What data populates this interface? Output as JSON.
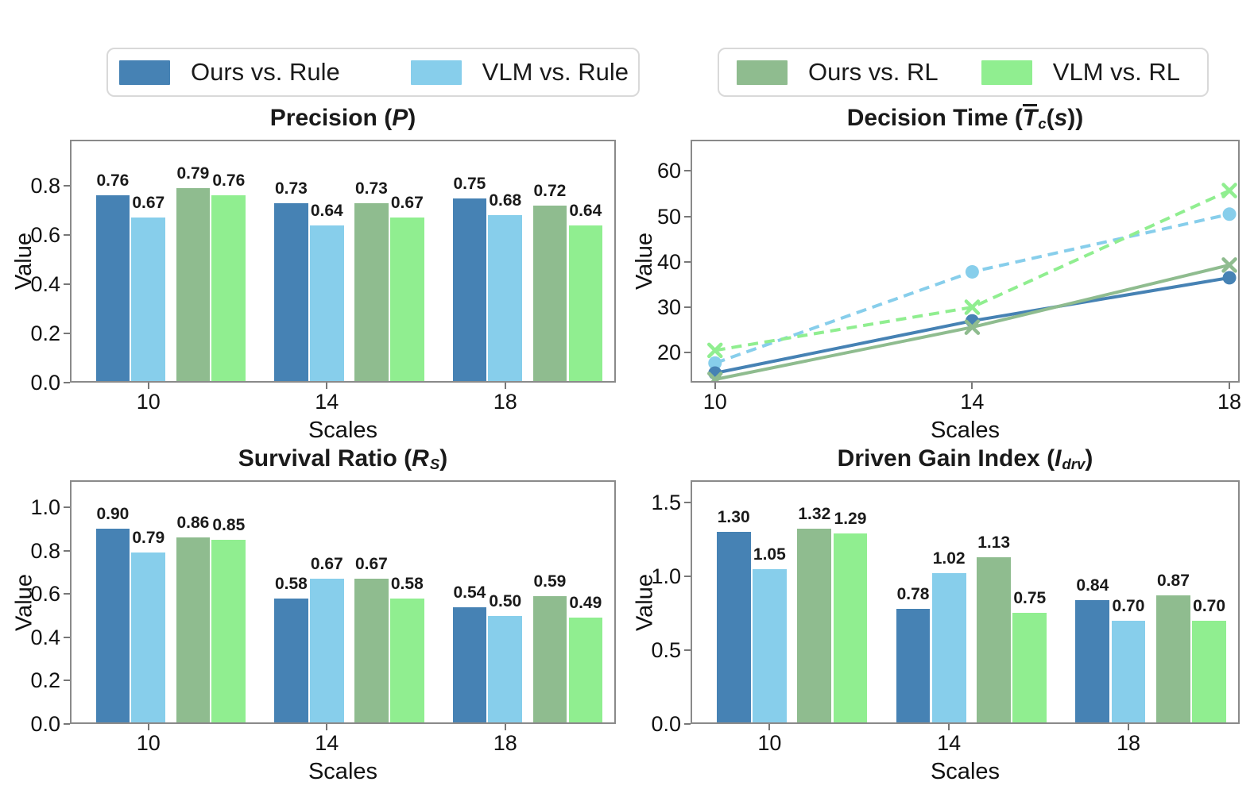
{
  "legends": [
    {
      "items": [
        {
          "label": "Ours vs. Rule",
          "color": "#4682b4"
        },
        {
          "label": "VLM vs. Rule",
          "color": "#87ceeb"
        }
      ]
    },
    {
      "items": [
        {
          "label": "Ours vs. RL",
          "color": "#8fbc8f"
        },
        {
          "label": "VLM vs. RL",
          "color": "#90ee90"
        }
      ]
    }
  ],
  "chart_data": [
    {
      "id": "precision",
      "type": "bar",
      "title": "Precision (P)",
      "title_segments": [
        {
          "t": "Precision ("
        },
        {
          "t": "P",
          "italic": true
        },
        {
          "t": ")"
        }
      ],
      "xlabel": "Scales",
      "ylabel": "Value",
      "categories": [
        "10",
        "14",
        "18"
      ],
      "series": [
        {
          "name": "Ours vs. Rule",
          "color": "#4682b4",
          "values": [
            0.76,
            0.73,
            0.75
          ],
          "labels": [
            "0.76",
            "0.73",
            "0.75"
          ]
        },
        {
          "name": "VLM vs. Rule",
          "color": "#87ceeb",
          "values": [
            0.67,
            0.64,
            0.68
          ],
          "labels": [
            "0.67",
            "0.64",
            "0.68"
          ]
        },
        {
          "name": "Ours vs. RL",
          "color": "#8fbc8f",
          "values": [
            0.79,
            0.73,
            0.72
          ],
          "labels": [
            "0.79",
            "0.73",
            "0.72"
          ]
        },
        {
          "name": "VLM vs. RL",
          "color": "#90ee90",
          "values": [
            0.76,
            0.67,
            0.64
          ],
          "labels": [
            "0.76",
            "0.67",
            "0.64"
          ]
        }
      ],
      "ytick_values": [
        0,
        0.2,
        0.4,
        0.6,
        0.8
      ],
      "ytick_labels": [
        "0.0",
        "0.2",
        "0.4",
        "0.6",
        "0.8"
      ],
      "ylim": [
        0,
        0.9875
      ],
      "grid": false
    },
    {
      "id": "decision-time",
      "type": "line",
      "title": "Decision Time (T̄c(s))",
      "title_segments": [
        {
          "t": "Decision Time ("
        },
        {
          "t": "T",
          "italic": true,
          "overline": true
        },
        {
          "t": "c",
          "italic": true,
          "sub": true
        },
        {
          "t": "("
        },
        {
          "t": "s",
          "italic": true
        },
        {
          "t": "))"
        }
      ],
      "xlabel": "Scales",
      "ylabel": "Value",
      "x": [
        10,
        14,
        18
      ],
      "xtick_labels": [
        "10",
        "14",
        "18"
      ],
      "xlim": [
        9.62,
        18.16
      ],
      "series": [
        {
          "name": "VLM vs. Rule",
          "color": "#87ceeb",
          "style": "dashed",
          "marker": "circle",
          "values": [
            17.7,
            37.8,
            50.5
          ]
        },
        {
          "name": "Ours vs. Rule",
          "color": "#4682b4",
          "style": "solid",
          "marker": "circle",
          "values": [
            15.5,
            27.0,
            36.5
          ]
        },
        {
          "name": "VLM vs. RL",
          "color": "#90ee90",
          "style": "dashed",
          "marker": "x",
          "values": [
            20.5,
            30.0,
            55.7
          ]
        },
        {
          "name": "Ours vs. RL",
          "color": "#8fbc8f",
          "style": "solid",
          "marker": "x",
          "values": [
            14.1,
            25.6,
            39.3
          ]
        }
      ],
      "ytick_values": [
        20,
        30,
        40,
        50,
        60
      ],
      "ytick_labels": [
        "20",
        "30",
        "40",
        "50",
        "60"
      ],
      "ylim": [
        13.4,
        66.9
      ],
      "grid": false
    },
    {
      "id": "survival-ratio",
      "type": "bar",
      "title": "Survival Ratio (RS)",
      "title_segments": [
        {
          "t": "Survival Ratio ("
        },
        {
          "t": "R",
          "italic": true
        },
        {
          "t": "S",
          "italic": true,
          "sub": true
        },
        {
          "t": ")"
        }
      ],
      "xlabel": "Scales",
      "ylabel": "Value",
      "categories": [
        "10",
        "14",
        "18"
      ],
      "series": [
        {
          "name": "Ours vs. Rule",
          "color": "#4682b4",
          "values": [
            0.9,
            0.58,
            0.54
          ],
          "labels": [
            "0.90",
            "0.58",
            "0.54"
          ]
        },
        {
          "name": "VLM vs. Rule",
          "color": "#87ceeb",
          "values": [
            0.79,
            0.67,
            0.5
          ],
          "labels": [
            "0.79",
            "0.67",
            "0.50"
          ]
        },
        {
          "name": "Ours vs. RL",
          "color": "#8fbc8f",
          "values": [
            0.86,
            0.67,
            0.59
          ],
          "labels": [
            "0.86",
            "0.67",
            "0.59"
          ]
        },
        {
          "name": "VLM vs. RL",
          "color": "#90ee90",
          "values": [
            0.85,
            0.58,
            0.49
          ],
          "labels": [
            "0.85",
            "0.58",
            "0.49"
          ]
        }
      ],
      "ytick_values": [
        0,
        0.2,
        0.4,
        0.6,
        0.8,
        1.0
      ],
      "ytick_labels": [
        "0.0",
        "0.2",
        "0.4",
        "0.6",
        "0.8",
        "1.0"
      ],
      "ylim": [
        0,
        1.125
      ],
      "grid": false
    },
    {
      "id": "driven-gain-index",
      "type": "bar",
      "title": "Driven Gain Index (Idrv)",
      "title_segments": [
        {
          "t": "Driven Gain Index ("
        },
        {
          "t": "I",
          "italic": true
        },
        {
          "t": "drv",
          "italic": true,
          "sub": true
        },
        {
          "t": ")"
        }
      ],
      "xlabel": "Scales",
      "ylabel": "Value",
      "categories": [
        "10",
        "14",
        "18"
      ],
      "series": [
        {
          "name": "Ours vs. Rule",
          "color": "#4682b4",
          "values": [
            1.3,
            0.78,
            0.84
          ],
          "labels": [
            "1.30",
            "0.78",
            "0.84"
          ]
        },
        {
          "name": "VLM vs. Rule",
          "color": "#87ceeb",
          "values": [
            1.05,
            1.02,
            0.7
          ],
          "labels": [
            "1.05",
            "1.02",
            "0.70"
          ]
        },
        {
          "name": "Ours vs. RL",
          "color": "#8fbc8f",
          "values": [
            1.32,
            1.13,
            0.87
          ],
          "labels": [
            "1.32",
            "1.13",
            "0.87"
          ]
        },
        {
          "name": "VLM vs. RL",
          "color": "#90ee90",
          "values": [
            1.29,
            0.75,
            0.7
          ],
          "labels": [
            "1.29",
            "0.75",
            "0.70"
          ]
        }
      ],
      "ytick_values": [
        0,
        0.5,
        1.0,
        1.5
      ],
      "ytick_labels": [
        "0.0",
        "0.5",
        "1.0",
        "1.5"
      ],
      "ylim": [
        0,
        1.65
      ],
      "grid": false
    }
  ]
}
